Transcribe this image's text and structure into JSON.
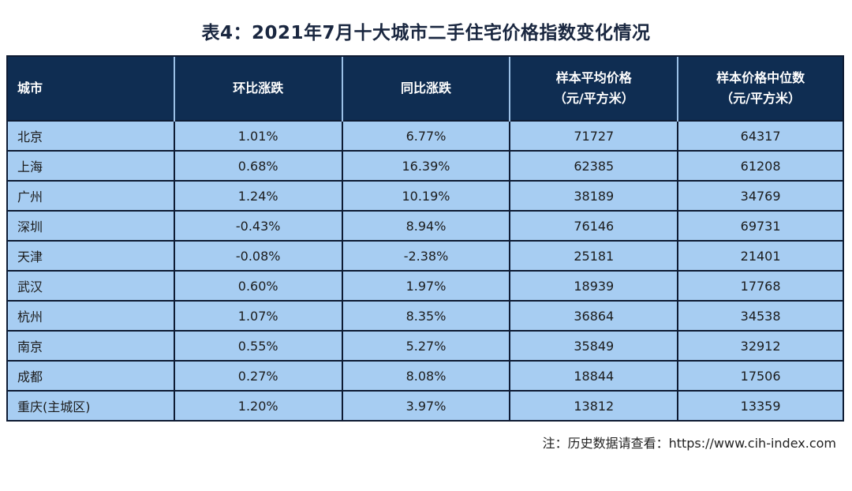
{
  "title": "表4：2021年7月十大城市二手住宅价格指数变化情况",
  "headers": {
    "city": "城市",
    "mom": "环比涨跌",
    "yoy": "同比涨跌",
    "avg_line1": "样本平均价格",
    "avg_line2": "（元/平方米）",
    "median_line1": "样本价格中位数",
    "median_line2": "（元/平方米）"
  },
  "rows": [
    {
      "city": "北京",
      "mom": "1.01%",
      "yoy": "6.77%",
      "avg": "71727",
      "median": "64317"
    },
    {
      "city": "上海",
      "mom": "0.68%",
      "yoy": "16.39%",
      "avg": "62385",
      "median": "61208"
    },
    {
      "city": "广州",
      "mom": "1.24%",
      "yoy": "10.19%",
      "avg": "38189",
      "median": "34769"
    },
    {
      "city": "深圳",
      "mom": "-0.43%",
      "yoy": "8.94%",
      "avg": "76146",
      "median": "69731"
    },
    {
      "city": "天津",
      "mom": "-0.08%",
      "yoy": "-2.38%",
      "avg": "25181",
      "median": "21401"
    },
    {
      "city": "武汉",
      "mom": "0.60%",
      "yoy": "1.97%",
      "avg": "18939",
      "median": "17768"
    },
    {
      "city": "杭州",
      "mom": "1.07%",
      "yoy": "8.35%",
      "avg": "36864",
      "median": "34538"
    },
    {
      "city": "南京",
      "mom": "0.55%",
      "yoy": "5.27%",
      "avg": "35849",
      "median": "32912"
    },
    {
      "city": "成都",
      "mom": "0.27%",
      "yoy": "8.08%",
      "avg": "18844",
      "median": "17506"
    },
    {
      "city": "重庆(主城区)",
      "mom": "1.20%",
      "yoy": "3.97%",
      "avg": "13812",
      "median": "13359"
    }
  ],
  "note": "注：历史数据请查看：https://www.cih-index.com",
  "colors": {
    "header_bg": "#0f2d52",
    "cell_bg": "#a7cdf2",
    "border": "#0e1b33"
  }
}
